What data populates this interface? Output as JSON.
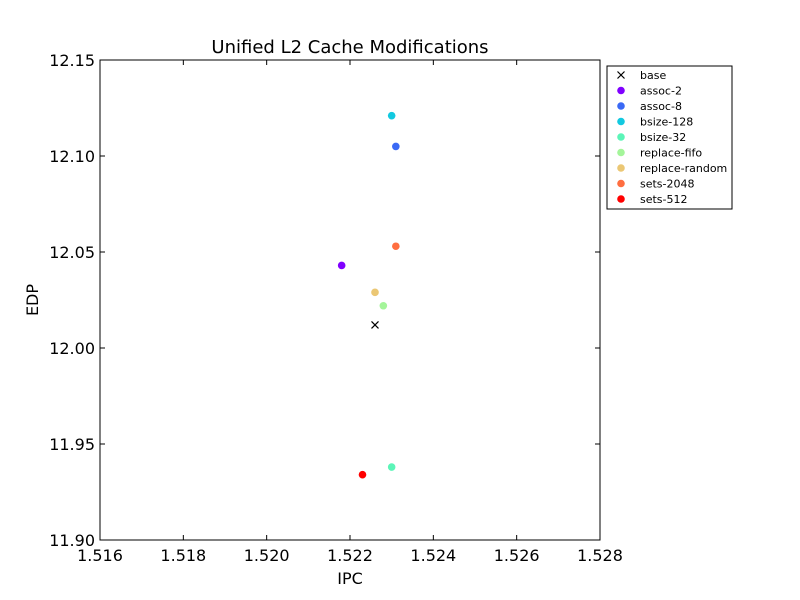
{
  "chart_data": {
    "type": "scatter",
    "title": "Unified L2 Cache Modifications",
    "xlabel": "IPC",
    "ylabel": "EDP",
    "xlim": [
      1.516,
      1.528
    ],
    "ylim": [
      11.9,
      12.15
    ],
    "xticks": [
      1.516,
      1.518,
      1.52,
      1.522,
      1.524,
      1.526,
      1.528
    ],
    "xtick_labels": [
      "1.516",
      "1.518",
      "1.520",
      "1.522",
      "1.524",
      "1.526",
      "1.528"
    ],
    "yticks": [
      11.9,
      11.95,
      12.0,
      12.05,
      12.1,
      12.15
    ],
    "ytick_labels": [
      "11.90",
      "11.95",
      "12.00",
      "12.05",
      "12.10",
      "12.15"
    ],
    "grid": false,
    "legend_position": "outside-right",
    "series": [
      {
        "name": "base",
        "marker": "x",
        "color": "#000000",
        "x": 1.5226,
        "y": 12.012
      },
      {
        "name": "assoc-2",
        "marker": "o",
        "color": "#8000ff",
        "x": 1.5218,
        "y": 12.043
      },
      {
        "name": "assoc-8",
        "marker": "o",
        "color": "#3a69f5",
        "x": 1.5231,
        "y": 12.105
      },
      {
        "name": "bsize-128",
        "marker": "o",
        "color": "#12c9e0",
        "x": 1.523,
        "y": 12.121
      },
      {
        "name": "bsize-32",
        "marker": "o",
        "color": "#5cf5b8",
        "x": 1.523,
        "y": 11.938
      },
      {
        "name": "replace-fifo",
        "marker": "o",
        "color": "#a4f59a",
        "x": 1.5228,
        "y": 12.022
      },
      {
        "name": "replace-random",
        "marker": "o",
        "color": "#ebc774",
        "x": 1.5226,
        "y": 12.029
      },
      {
        "name": "sets-2048",
        "marker": "o",
        "color": "#ff6e40",
        "x": 1.5231,
        "y": 12.053
      },
      {
        "name": "sets-512",
        "marker": "o",
        "color": "#ff0000",
        "x": 1.5223,
        "y": 11.934
      }
    ]
  }
}
